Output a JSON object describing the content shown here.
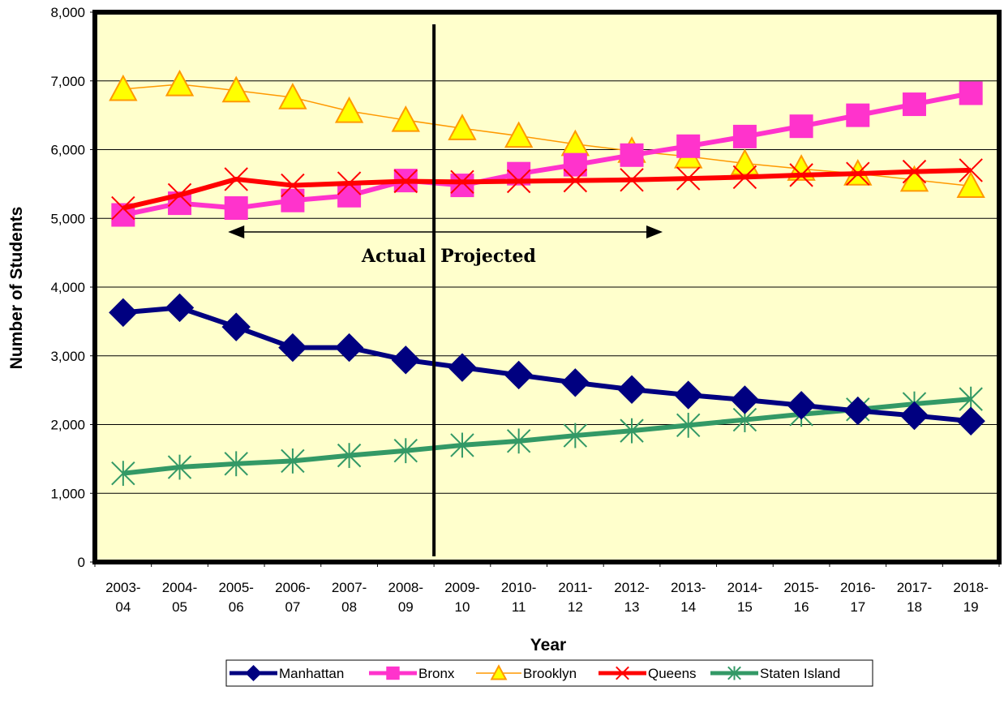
{
  "chart_data": {
    "type": "line",
    "title": "",
    "xlabel": "Year",
    "ylabel": "Number of Students",
    "ylim": [
      0,
      8000
    ],
    "yticks": [
      "0",
      "1,000",
      "2,000",
      "3,000",
      "4,000",
      "5,000",
      "6,000",
      "7,000",
      "8,000"
    ],
    "categories": [
      [
        "2003-",
        "04"
      ],
      [
        "2004-",
        "05"
      ],
      [
        "2005-",
        "06"
      ],
      [
        "2006-",
        "07"
      ],
      [
        "2007-",
        "08"
      ],
      [
        "2008-",
        "09"
      ],
      [
        "2009-",
        "10"
      ],
      [
        "2010-",
        "11"
      ],
      [
        "2011-",
        "12"
      ],
      [
        "2012-",
        "13"
      ],
      [
        "2013-",
        "14"
      ],
      [
        "2014-",
        "15"
      ],
      [
        "2015-",
        "16"
      ],
      [
        "2016-",
        "17"
      ],
      [
        "2017-",
        "18"
      ],
      [
        "2018-",
        "19"
      ]
    ],
    "background_color": "#FFFFCC",
    "grid": true,
    "legend_position": "bottom",
    "annotations": {
      "actual_label": "Actual",
      "projected_label": "Projected",
      "divider_between": [
        "2008-09",
        "2009-10"
      ],
      "arrow_span": [
        "2005-06",
        "2012-13"
      ]
    },
    "series": [
      {
        "name": "Manhattan",
        "color": "#000080",
        "marker": "diamond",
        "values": [
          3630,
          3700,
          3420,
          3120,
          3120,
          2940,
          2830,
          2720,
          2610,
          2510,
          2430,
          2360,
          2280,
          2200,
          2130,
          2050
        ]
      },
      {
        "name": "Bronx",
        "color": "#FF33CC",
        "marker": "square",
        "values": [
          5050,
          5220,
          5150,
          5260,
          5330,
          5550,
          5480,
          5650,
          5780,
          5920,
          6050,
          6190,
          6340,
          6500,
          6660,
          6820
        ]
      },
      {
        "name": "Brooklyn",
        "color": "#FF9900",
        "marker": "triangle",
        "values": [
          6880,
          6950,
          6860,
          6760,
          6560,
          6430,
          6310,
          6200,
          6080,
          5980,
          5900,
          5800,
          5720,
          5650,
          5560,
          5470
        ]
      },
      {
        "name": "Queens",
        "color": "#FF0000",
        "marker": "x",
        "values": [
          5150,
          5340,
          5570,
          5480,
          5510,
          5540,
          5530,
          5540,
          5550,
          5560,
          5580,
          5600,
          5630,
          5650,
          5680,
          5700
        ]
      },
      {
        "name": "Staten Island",
        "color": "#339966",
        "marker": "star",
        "values": [
          1290,
          1380,
          1430,
          1470,
          1550,
          1620,
          1700,
          1760,
          1840,
          1910,
          1990,
          2070,
          2150,
          2220,
          2300,
          2370
        ]
      }
    ]
  }
}
